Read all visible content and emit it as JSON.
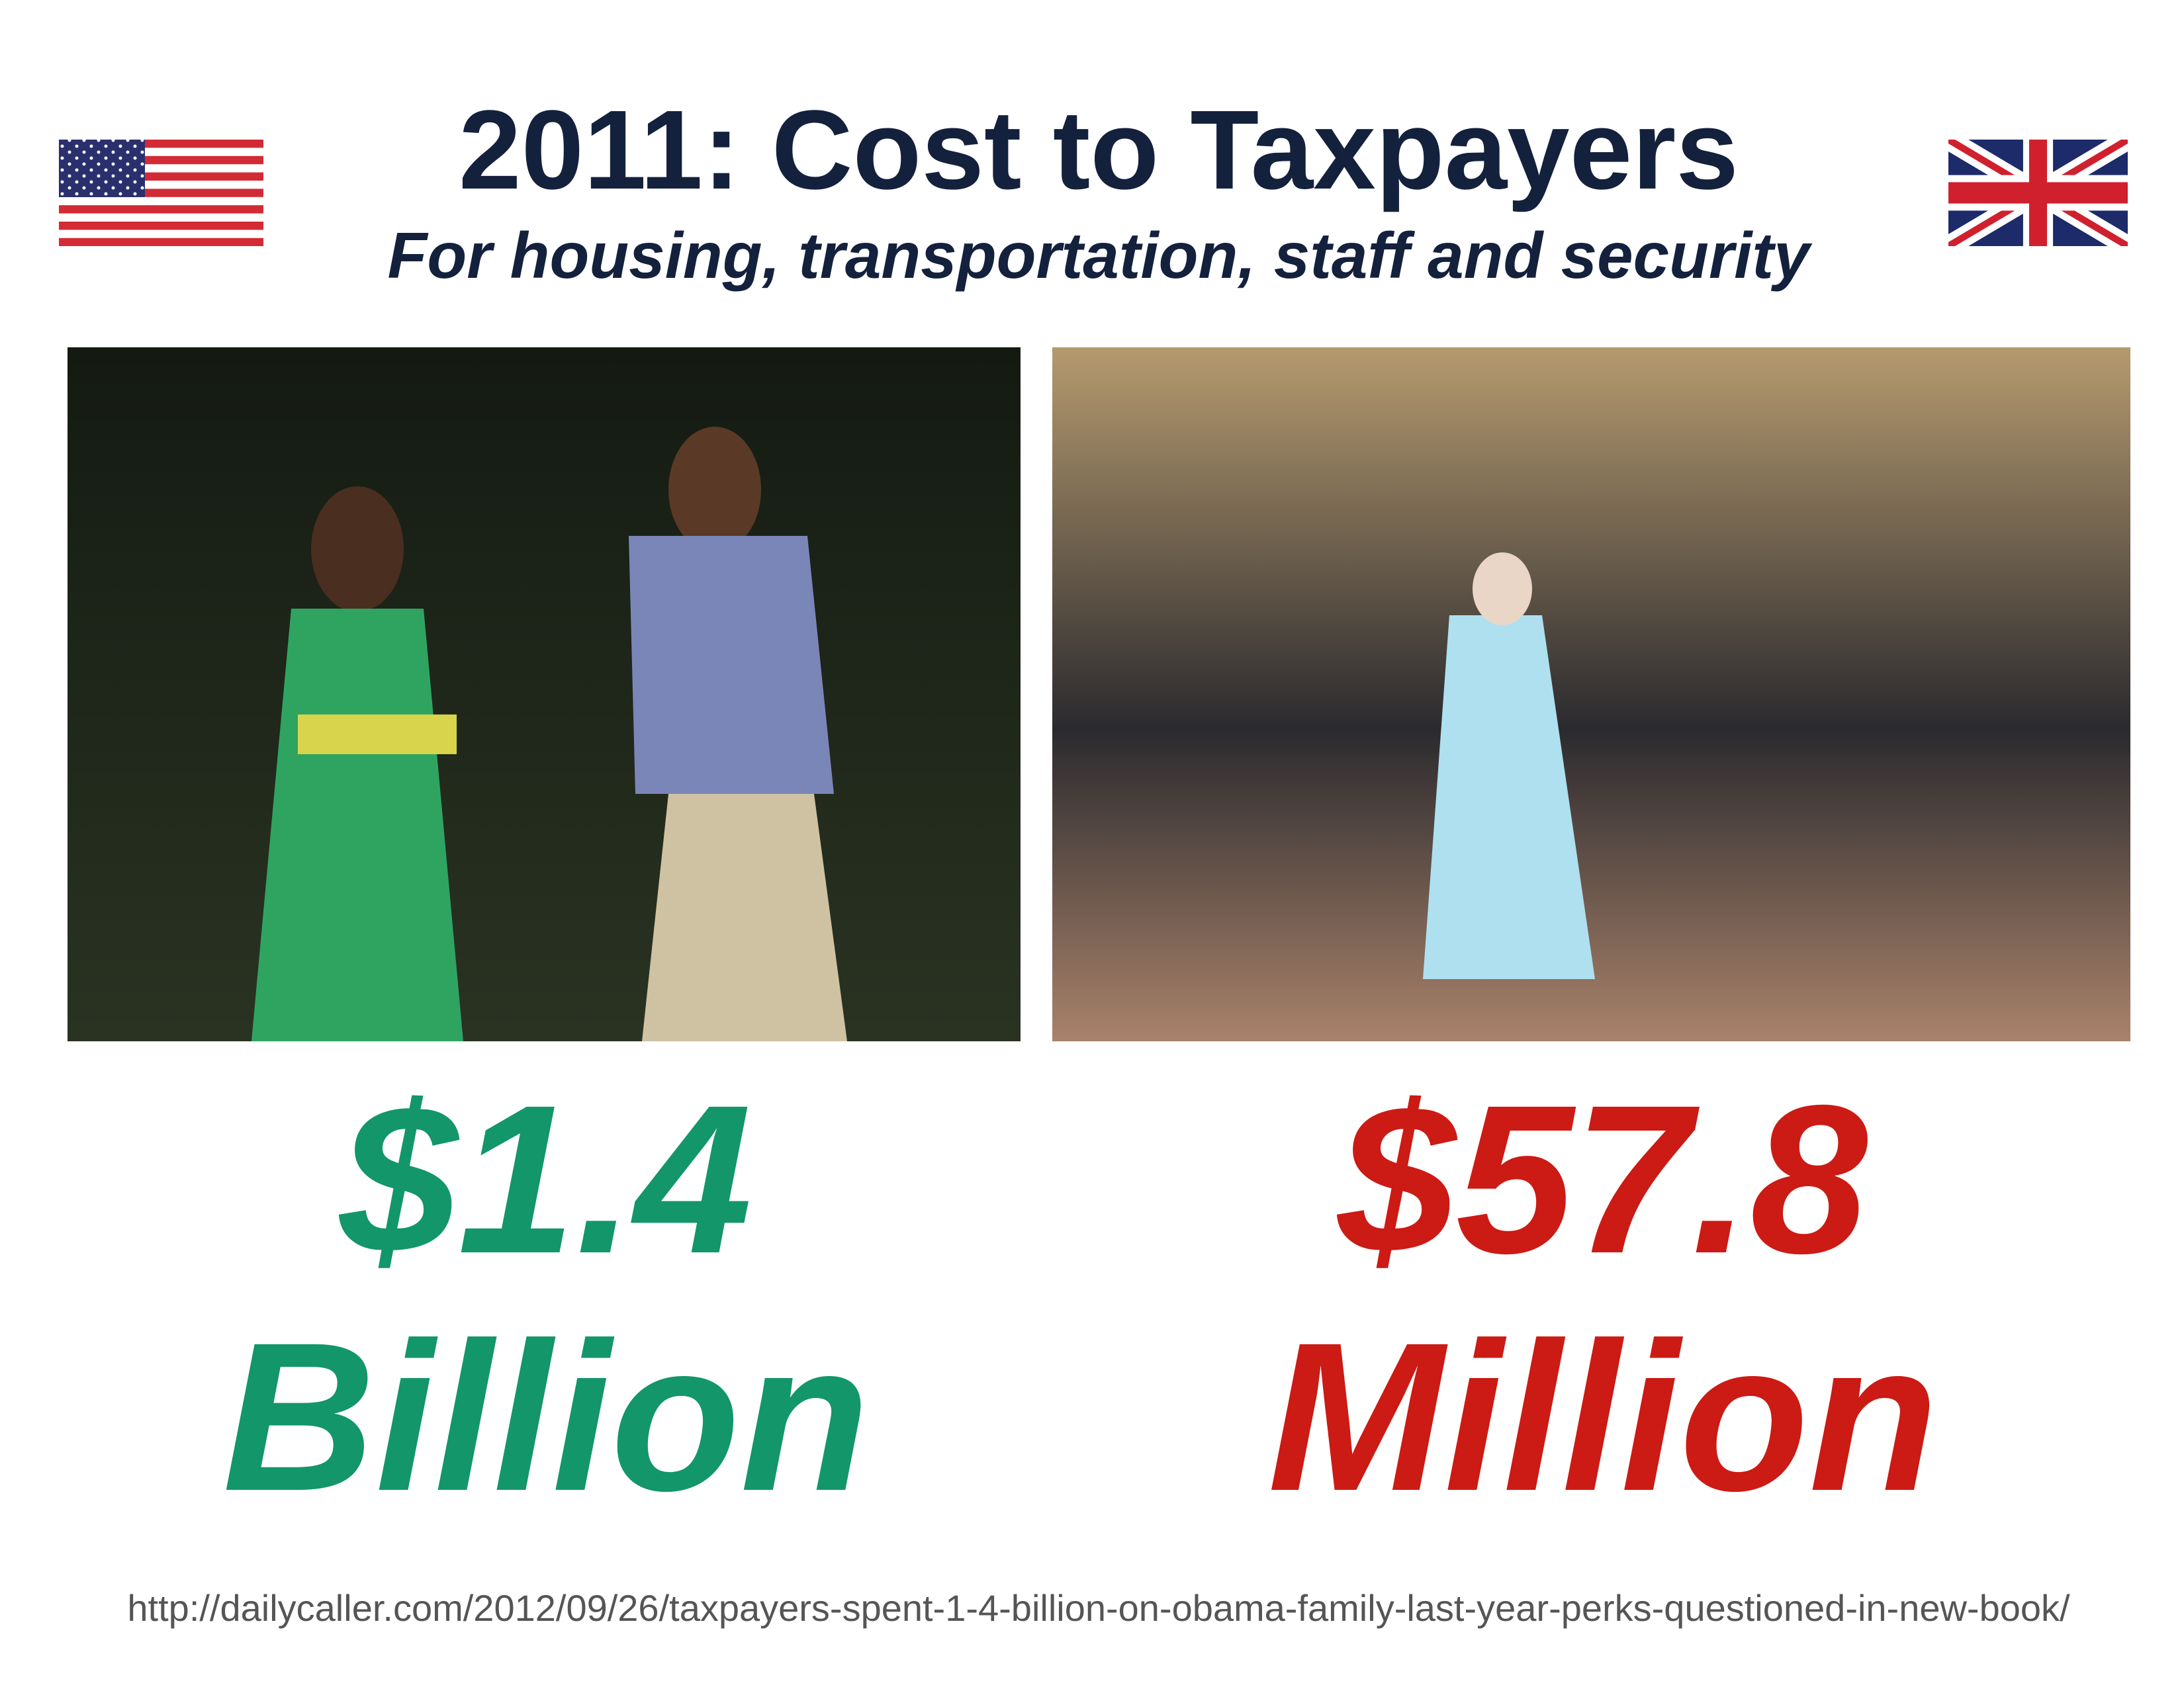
{
  "header": {
    "title": "2011: Cost to Taxpayers",
    "subtitle": "For housing, transportation, staff and security"
  },
  "panels": [
    {
      "amount": "$1.4",
      "unit": "Billion"
    },
    {
      "amount": "$57.8",
      "unit": "Million"
    }
  ],
  "source": "http://dailycaller.com/2012/09/26/taxpayers-spent-1-4-billion-on-obama-family-last-year-perks-questioned-in-new-book/"
}
